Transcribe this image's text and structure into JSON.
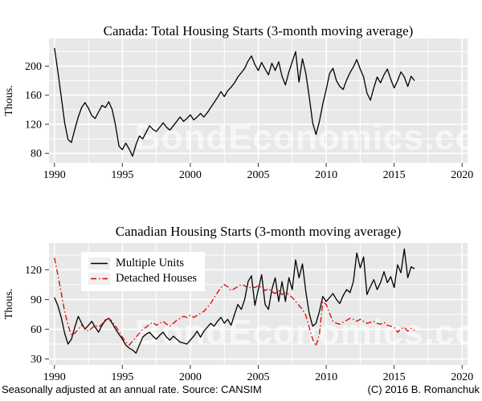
{
  "page": {
    "footer_left": "Seasonally adjusted at an annual rate. Source: CANSIM",
    "footer_right": "(C) 2016 B. Romanchuk"
  },
  "watermark": "BondEconomics.com",
  "colors": {
    "plot_bg": "#e8e8e8",
    "grid": "#ffffff",
    "tick": "#333333",
    "total": "#000000",
    "multiple": "#000000",
    "detached": "#e00000",
    "legend_key_bg": "#efefef",
    "watermark": "rgba(255,255,255,0.62)"
  },
  "chart_data": [
    {
      "type": "line",
      "title": "Canada: Total Housing Starts (3-month moving average)",
      "xlabel": "",
      "ylabel": "Thous.",
      "xlim": [
        1989.6,
        2020.4
      ],
      "ylim": [
        67,
        238
      ],
      "xticks": [
        1990,
        1995,
        2000,
        2005,
        2010,
        2015,
        2020
      ],
      "yticks": [
        80,
        120,
        160,
        200
      ],
      "xminor": [
        1992.5,
        1997.5,
        2002.5,
        2007.5,
        2012.5,
        2017.5
      ],
      "yminor": [
        100,
        140,
        180,
        220
      ],
      "grid": "white major+minor on gray panel",
      "legend": null,
      "series": [
        {
          "name": "Total Housing Starts",
          "color_key": "total",
          "dash": "solid",
          "x_start": 1990.0,
          "x_step": 0.25,
          "values": [
            225,
            193,
            158,
            122,
            99,
            95,
            113,
            130,
            143,
            150,
            142,
            132,
            128,
            137,
            146,
            143,
            151,
            140,
            118,
            90,
            85,
            94,
            86,
            76,
            92,
            104,
            100,
            109,
            118,
            113,
            110,
            116,
            122,
            116,
            112,
            118,
            124,
            130,
            124,
            128,
            133,
            126,
            130,
            135,
            130,
            136,
            143,
            150,
            157,
            165,
            158,
            166,
            171,
            177,
            185,
            191,
            197,
            207,
            214,
            202,
            194,
            205,
            196,
            188,
            204,
            194,
            206,
            186,
            174,
            192,
            206,
            220,
            178,
            210,
            190,
            158,
            122,
            106,
            124,
            148,
            168,
            190,
            197,
            180,
            172,
            168,
            181,
            191,
            199,
            209,
            196,
            185,
            163,
            153,
            170,
            185,
            177,
            188,
            196,
            182,
            170,
            180,
            192,
            185,
            172,
            186,
            180
          ]
        }
      ]
    },
    {
      "type": "line",
      "title": "Canadian Housing Starts (3-month moving average)",
      "xlabel": "",
      "ylabel": "Thous.",
      "xlim": [
        1989.6,
        2020.4
      ],
      "ylim": [
        24,
        147
      ],
      "xticks": [
        1990,
        1995,
        2000,
        2005,
        2010,
        2015,
        2020
      ],
      "yticks": [
        30,
        60,
        90,
        120
      ],
      "xminor": [
        1992.5,
        1997.5,
        2002.5,
        2007.5,
        2012.5,
        2017.5
      ],
      "yminor": [
        45,
        75,
        105,
        135
      ],
      "grid": "white major+minor on gray panel",
      "legend": {
        "position": "top-left",
        "entries": [
          "Multiple Units",
          "Detached Houses"
        ]
      },
      "series": [
        {
          "name": "Multiple Units",
          "color_key": "multiple",
          "dash": "solid",
          "x_start": 1990.0,
          "x_step": 0.25,
          "values": [
            92,
            84,
            72,
            56,
            45,
            50,
            62,
            73,
            66,
            60,
            64,
            68,
            62,
            57,
            64,
            69,
            71,
            66,
            60,
            55,
            50,
            44,
            41,
            39,
            36,
            44,
            52,
            55,
            57,
            53,
            50,
            54,
            57,
            52,
            49,
            53,
            50,
            47,
            46,
            45,
            49,
            53,
            58,
            52,
            58,
            62,
            66,
            63,
            68,
            72,
            66,
            70,
            64,
            75,
            85,
            80,
            90,
            108,
            114,
            84,
            100,
            115,
            85,
            80,
            100,
            112,
            88,
            108,
            88,
            112,
            100,
            130,
            112,
            126,
            98,
            76,
            63,
            66,
            78,
            93,
            88,
            92,
            96,
            90,
            86,
            94,
            100,
            97,
            108,
            137,
            122,
            133,
            95,
            103,
            110,
            100,
            107,
            118,
            107,
            113,
            102,
            125,
            117,
            141,
            112,
            123,
            121
          ]
        },
        {
          "name": "Detached Houses",
          "color_key": "detached",
          "dash": "dashdot",
          "x_start": 1990.0,
          "x_step": 0.25,
          "values": [
            132,
            115,
            97,
            78,
            64,
            54,
            56,
            60,
            64,
            61,
            58,
            61,
            64,
            62,
            65,
            70,
            71,
            68,
            63,
            58,
            52,
            47,
            44,
            48,
            52,
            56,
            60,
            62,
            65,
            67,
            64,
            66,
            68,
            65,
            63,
            66,
            69,
            71,
            73,
            72,
            74,
            72,
            74,
            76,
            78,
            82,
            86,
            92,
            97,
            102,
            105,
            103,
            99,
            101,
            103,
            105,
            104,
            101,
            103,
            102,
            104,
            102,
            99,
            101,
            98,
            96,
            99,
            95,
            97,
            95,
            92,
            88,
            84,
            80,
            74,
            62,
            50,
            43,
            55,
            88,
            85,
            76,
            68,
            66,
            65,
            67,
            69,
            71,
            70,
            68,
            70,
            68,
            66,
            67,
            68,
            66,
            65,
            67,
            64,
            63,
            62,
            57,
            60,
            62,
            58,
            61,
            59
          ]
        }
      ]
    }
  ]
}
